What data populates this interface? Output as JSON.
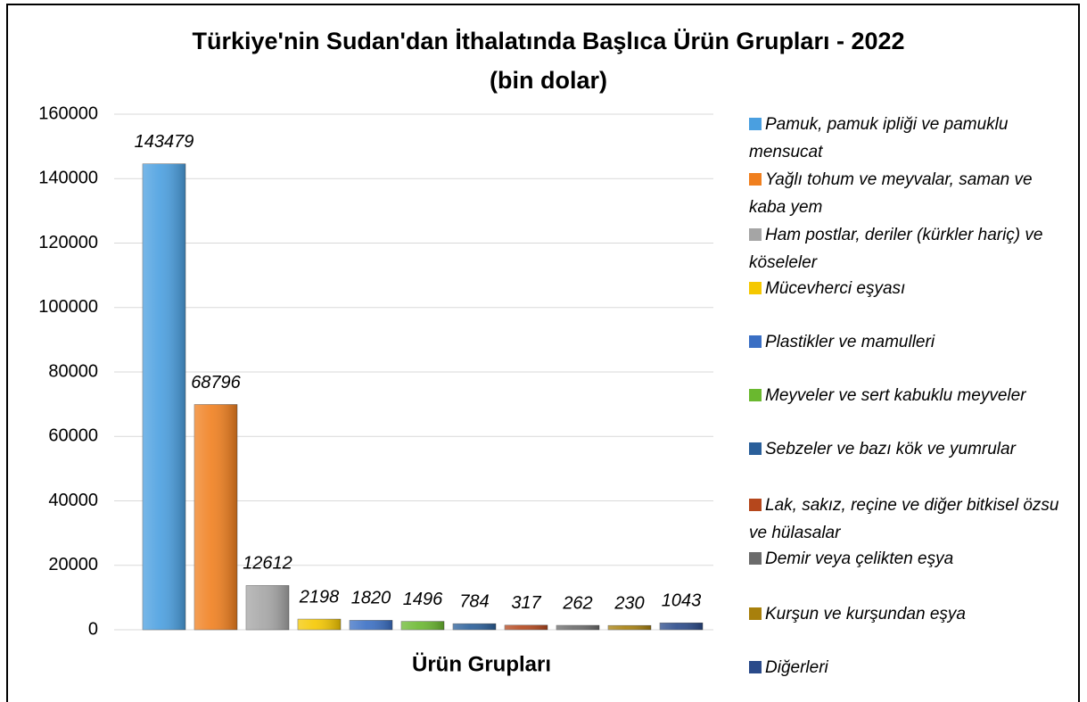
{
  "chart_data": {
    "type": "bar",
    "title": "Türkiye'nin Sudan'dan İthalatında Başlıca Ürün Grupları - 2022",
    "subtitle": "(bin dolar)",
    "x_label": "Ürün Grupları",
    "categories": [
      "Pamuk, pamuk ipliği ve pamuklu mensucat",
      "Yağlı tohum ve meyvalar, saman ve kaba yem",
      "Ham postlar, deriler (kürkler hariç) ve köseleler",
      "Mücevherci eşyası",
      "Plastikler ve mamulleri",
      "Meyveler ve sert kabuklu meyveler",
      "Sebzeler ve bazı kök ve yumrular",
      "Lak, sakız, reçine ve diğer bitkisel özsu ve hülasalar",
      "Demir veya çelikten eşya",
      "Kurşun ve kurşundan eşya",
      "Diğerleri"
    ],
    "values": [
      143479,
      68796,
      12612,
      2198,
      1820,
      1496,
      784,
      317,
      262,
      230,
      1043
    ],
    "colors": [
      "#4a9fe0",
      "#f07f1e",
      "#a5a5a5",
      "#f5c800",
      "#3a6fc4",
      "#6ab82f",
      "#2a5f9a",
      "#b5471c",
      "#6b6b6b",
      "#a8800c",
      "#2a4a8a"
    ],
    "ylim": [
      0,
      160000
    ],
    "yticks": [
      0,
      20000,
      40000,
      60000,
      80000,
      100000,
      120000,
      140000,
      160000
    ],
    "grid": true,
    "legend": "right"
  }
}
